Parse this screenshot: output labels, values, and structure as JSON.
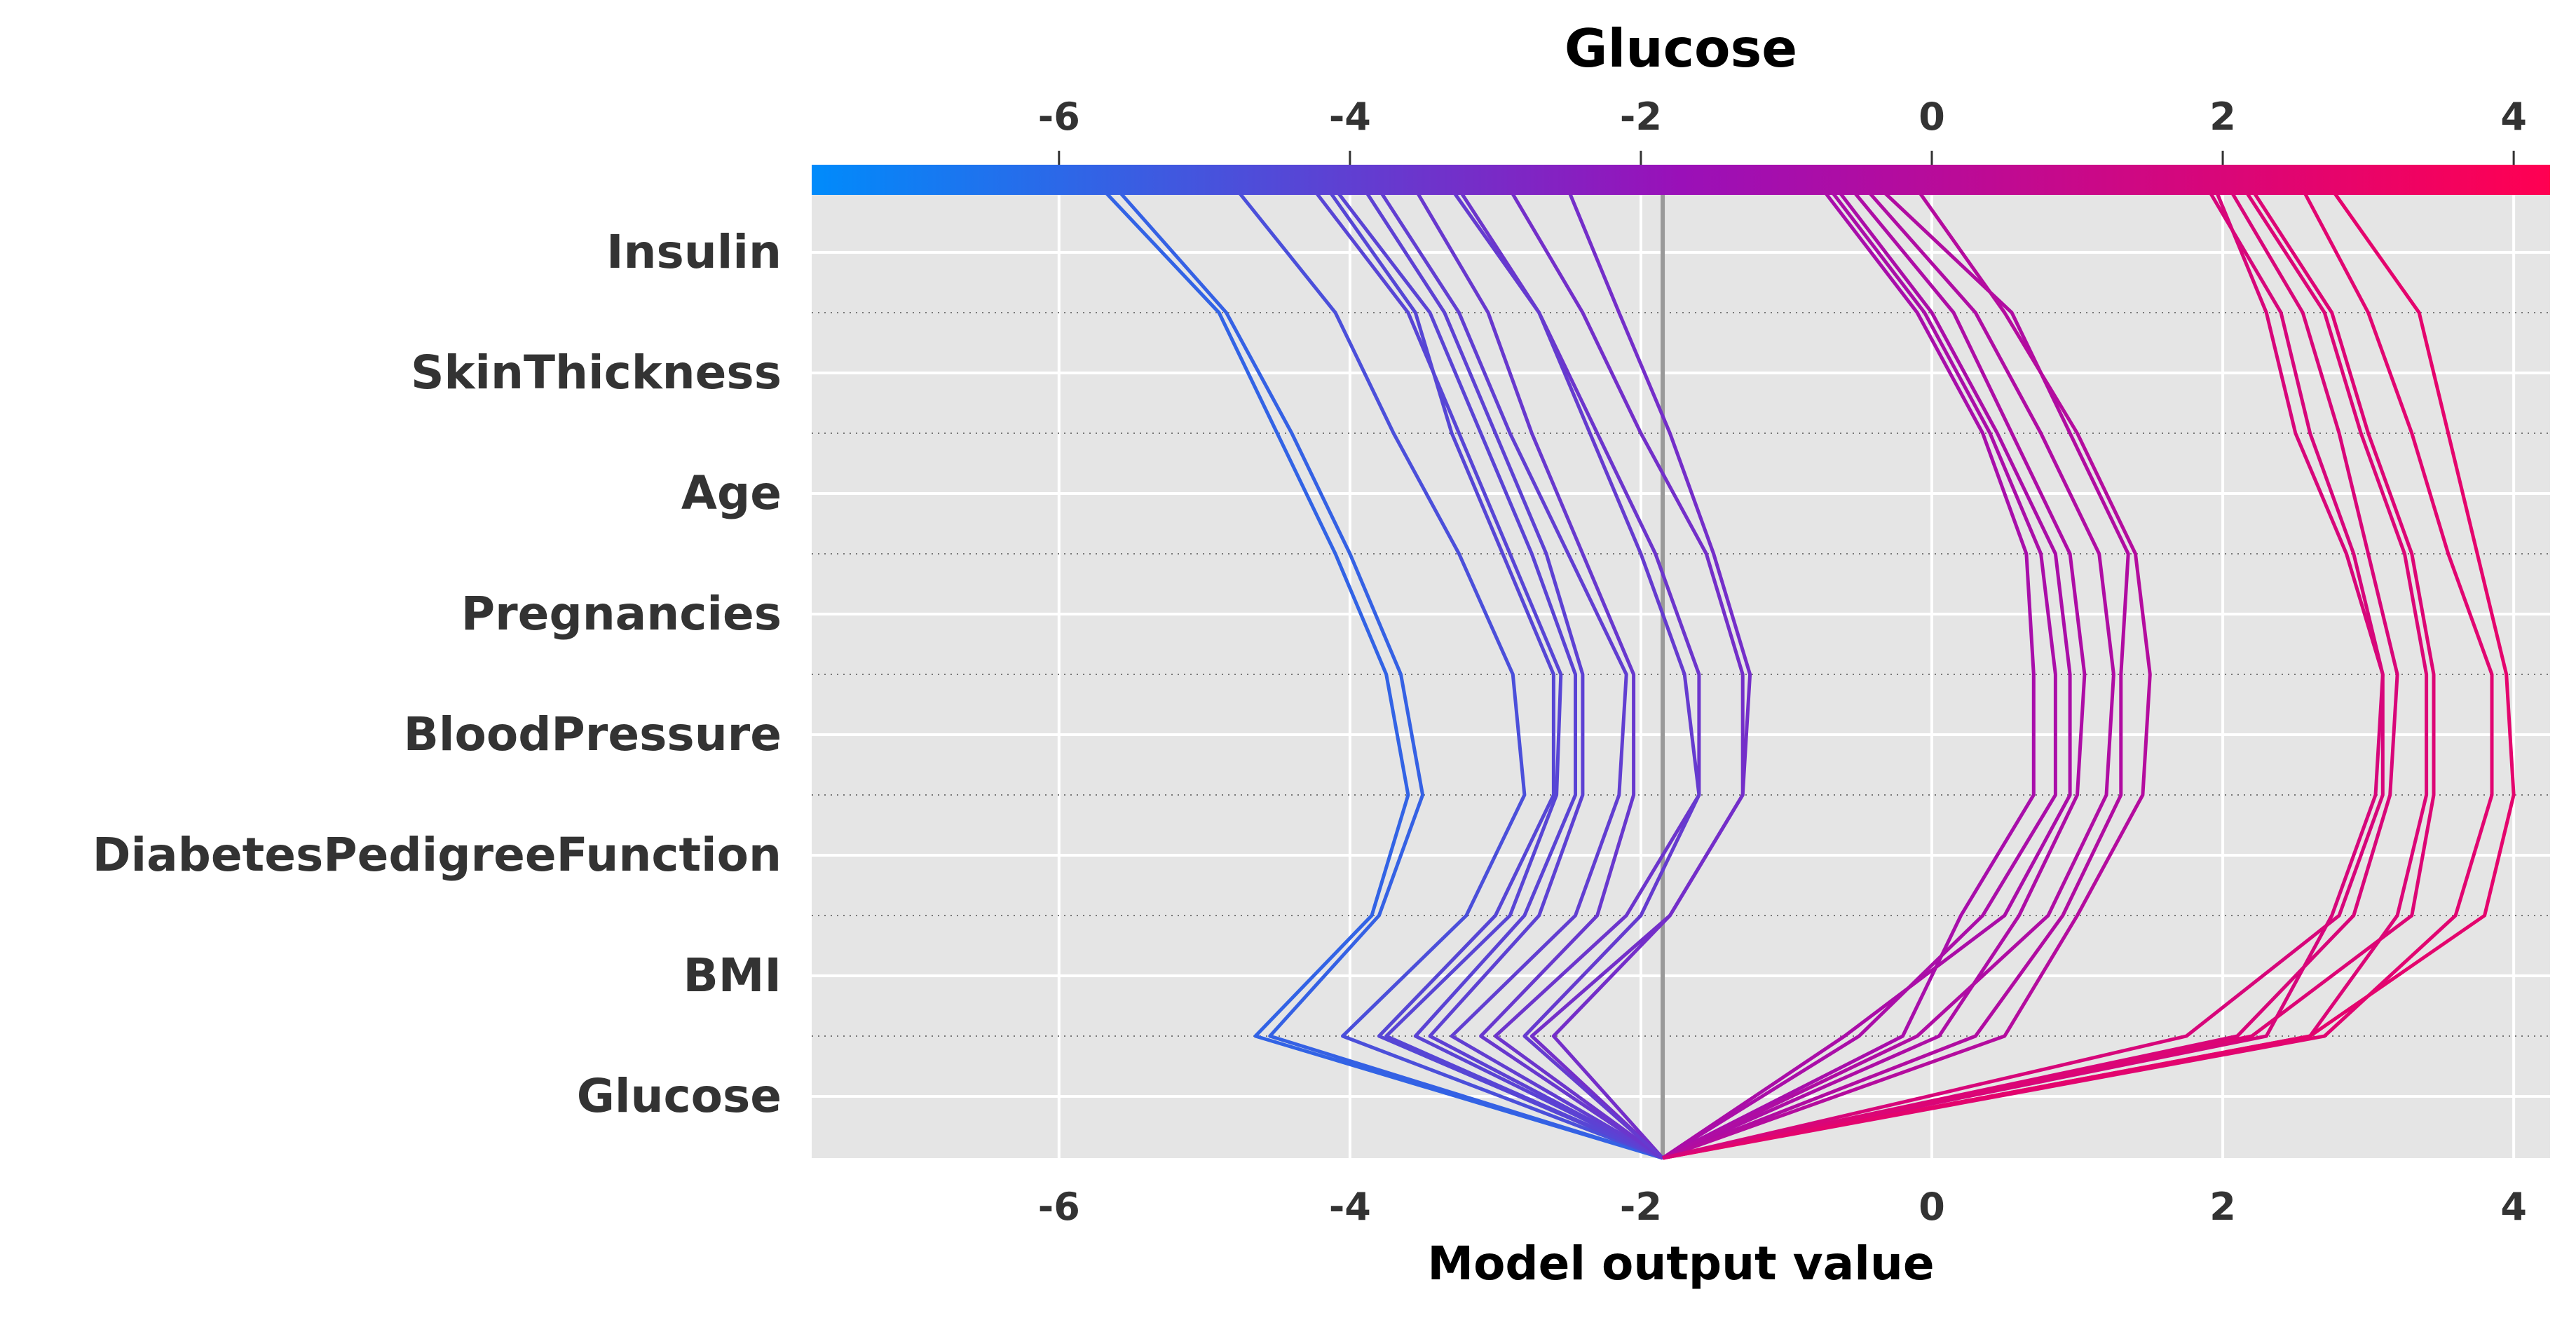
{
  "chart_data": {
    "type": "line",
    "subtype": "shap-decision-plot",
    "title": "Glucose",
    "xlabel": "Model output value",
    "ylabel": "",
    "xlim": [
      -7.7,
      4.25
    ],
    "x_ticks": [
      -6,
      -4,
      -2,
      0,
      2,
      4
    ],
    "x_tick_labels": [
      "-6",
      "-4",
      "-2",
      "0",
      "2",
      "4"
    ],
    "base_value": -1.85,
    "features": [
      "Insulin",
      "SkinThickness",
      "Age",
      "Pregnancies",
      "BloodPressure",
      "DiabetesPedigreeFunction",
      "BMI",
      "Glucose"
    ],
    "colorbar": {
      "colors": [
        "#008bfb",
        "#ff0052"
      ]
    },
    "line_points_order": [
      "base",
      "Glucose",
      "BMI",
      "DiabetesPedigreeFunction",
      "BloodPressure",
      "Pregnancies",
      "Age",
      "SkinThickness",
      "Insulin",
      "top"
    ],
    "series": [
      {
        "values": [
          -1.85,
          -4.65,
          -3.85,
          -3.6,
          -3.75,
          -4.1,
          -4.5,
          -4.9,
          -5.7,
          -5.75
        ]
      },
      {
        "values": [
          -1.85,
          -4.55,
          -3.8,
          -3.5,
          -3.65,
          -4.0,
          -4.4,
          -4.85,
          -5.6,
          -5.65
        ]
      },
      {
        "values": [
          -1.85,
          -4.05,
          -3.2,
          -2.8,
          -2.88,
          -3.25,
          -3.7,
          -4.1,
          -4.78,
          -4.8
        ]
      },
      {
        "values": [
          -1.85,
          -3.8,
          -3.0,
          -2.6,
          -2.6,
          -2.95,
          -3.3,
          -3.55,
          -4.15,
          -4.35
        ]
      },
      {
        "values": [
          -1.85,
          -3.75,
          -2.9,
          -2.58,
          -2.55,
          -2.9,
          -3.25,
          -3.6,
          -4.25,
          -4.3
        ]
      },
      {
        "values": [
          -1.85,
          -3.55,
          -2.8,
          -2.45,
          -2.45,
          -2.75,
          -3.1,
          -3.45,
          -4.1,
          -4.2
        ]
      },
      {
        "values": [
          -1.85,
          -3.45,
          -2.7,
          -2.4,
          -2.4,
          -2.65,
          -3.0,
          -3.35,
          -3.9,
          -4.1
        ]
      },
      {
        "values": [
          -1.85,
          -3.3,
          -2.45,
          -2.15,
          -2.1,
          -2.5,
          -2.9,
          -3.25,
          -3.8,
          -3.95
        ]
      },
      {
        "values": [
          -1.85,
          -3.1,
          -2.3,
          -2.05,
          -2.05,
          -2.4,
          -2.75,
          -3.05,
          -3.55,
          -3.65
        ]
      },
      {
        "values": [
          -1.85,
          -3.0,
          -2.1,
          -1.6,
          -1.6,
          -1.9,
          -2.3,
          -2.7,
          -3.25,
          -3.5
        ]
      },
      {
        "values": [
          -1.85,
          -2.75,
          -1.8,
          -1.3,
          -1.3,
          -1.55,
          -2.0,
          -2.4,
          -2.9,
          -3.25
        ]
      },
      {
        "values": [
          -1.85,
          -2.6,
          -1.8,
          -1.3,
          -1.25,
          -1.5,
          -1.8,
          -2.15,
          -2.5,
          -3.2
        ]
      },
      {
        "values": [
          -1.85,
          -2.8,
          -2.0,
          -1.6,
          -1.7,
          -2.0,
          -2.35,
          -2.7,
          -3.3,
          -3.8
        ]
      },
      {
        "values": [
          -1.85,
          -0.2,
          0.2,
          0.7,
          0.7,
          0.65,
          0.35,
          -0.1,
          -0.75,
          -0.9
        ]
      },
      {
        "values": [
          -1.85,
          -0.5,
          0.35,
          0.85,
          0.85,
          0.75,
          0.4,
          -0.05,
          -0.7,
          -0.8
        ]
      },
      {
        "values": [
          -1.85,
          -0.6,
          0.5,
          0.95,
          0.95,
          0.85,
          0.45,
          0.0,
          -0.65,
          -0.75
        ]
      },
      {
        "values": [
          -1.85,
          0.05,
          0.6,
          1.0,
          1.05,
          0.95,
          0.55,
          0.15,
          -0.55,
          -0.6
        ]
      },
      {
        "values": [
          -1.85,
          -0.1,
          0.8,
          1.2,
          1.25,
          1.15,
          0.75,
          0.3,
          -0.45,
          -0.5
        ]
      },
      {
        "values": [
          -1.85,
          0.3,
          0.9,
          1.3,
          1.3,
          1.35,
          0.95,
          0.55,
          -0.35,
          -0.4
        ]
      },
      {
        "values": [
          -1.85,
          0.5,
          1.0,
          1.45,
          1.5,
          1.4,
          1.0,
          0.5,
          -0.1,
          -0.2
        ]
      },
      {
        "values": [
          -1.85,
          2.3,
          2.75,
          3.05,
          3.1,
          2.9,
          2.6,
          2.4,
          1.9,
          1.85
        ]
      },
      {
        "values": [
          -1.85,
          2.1,
          2.9,
          3.15,
          3.2,
          3.0,
          2.8,
          2.55,
          2.05,
          1.95
        ]
      },
      {
        "values": [
          -1.85,
          2.6,
          3.2,
          3.4,
          3.4,
          3.25,
          2.95,
          2.7,
          2.15,
          2.1
        ]
      },
      {
        "values": [
          -1.85,
          2.2,
          3.3,
          3.45,
          3.45,
          3.3,
          3.0,
          2.75,
          2.2,
          2.2
        ]
      },
      {
        "values": [
          -1.85,
          2.7,
          3.6,
          3.85,
          3.85,
          3.55,
          3.3,
          3.0,
          2.55,
          2.45
        ]
      },
      {
        "values": [
          -1.85,
          2.6,
          3.8,
          4.0,
          3.95,
          3.75,
          3.55,
          3.35,
          2.75,
          2.65
        ]
      },
      {
        "values": [
          -1.85,
          1.75,
          2.8,
          3.1,
          3.1,
          2.85,
          2.5,
          2.3,
          1.95,
          1.9
        ]
      }
    ]
  }
}
